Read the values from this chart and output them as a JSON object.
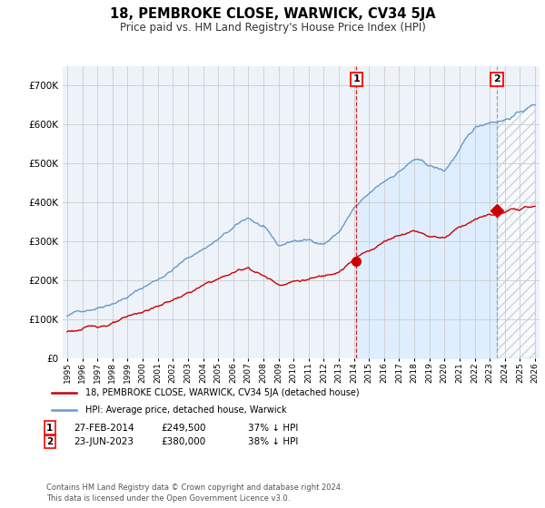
{
  "title": "18, PEMBROKE CLOSE, WARWICK, CV34 5JA",
  "subtitle": "Price paid vs. HM Land Registry's House Price Index (HPI)",
  "hpi_color": "#6699CC",
  "price_color": "#CC0000",
  "bg_color": "#FFFFFF",
  "plot_bg_color": "#EEF3FA",
  "grid_color": "#CCCCCC",
  "ylim": [
    0,
    750000
  ],
  "yticks": [
    0,
    100000,
    200000,
    300000,
    400000,
    500000,
    600000,
    700000
  ],
  "year_start": 1995,
  "year_end": 2026,
  "transaction1_year": 2014.16,
  "transaction1_price": 249500,
  "transaction1_date": "27-FEB-2014",
  "transaction1_pct": "37% ↓ HPI",
  "transaction2_year": 2023.48,
  "transaction2_price": 380000,
  "transaction2_date": "23-JUN-2023",
  "transaction2_pct": "38% ↓ HPI",
  "legend_line1": "18, PEMBROKE CLOSE, WARWICK, CV34 5JA (detached house)",
  "legend_line2": "HPI: Average price, detached house, Warwick",
  "footnote": "Contains HM Land Registry data © Crown copyright and database right 2024.\nThis data is licensed under the Open Government Licence v3.0."
}
